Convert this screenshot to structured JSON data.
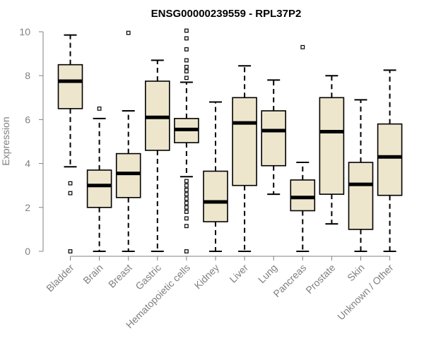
{
  "chart_data": {
    "type": "boxplot",
    "title": "ENSG00000239559 - RPL37P2",
    "xlabel": "",
    "ylabel": "Expression",
    "ylim": [
      0,
      10
    ],
    "yticks": [
      0,
      2,
      4,
      6,
      8,
      10
    ],
    "grid": false,
    "colors": {
      "box_fill": "#ede6cc",
      "box_stroke": "#000000",
      "axis": "#808080"
    },
    "categories": [
      "Bladder",
      "Brain",
      "Breast",
      "Gastric",
      "Hematopoietic cells",
      "Kidney",
      "Liver",
      "Lung",
      "Pancreas",
      "Prostate",
      "Skin",
      "Unknown / Other"
    ],
    "boxes": [
      {
        "category": "Bladder",
        "whisker_low": 3.85,
        "q1": 6.5,
        "median": 7.75,
        "q3": 8.5,
        "whisker_high": 9.85,
        "outliers": [
          0,
          2.65,
          3.1
        ]
      },
      {
        "category": "Brain",
        "whisker_low": 0,
        "q1": 2.0,
        "median": 3.0,
        "q3": 3.7,
        "whisker_high": 6.05,
        "outliers": [
          6.5
        ]
      },
      {
        "category": "Breast",
        "whisker_low": 0,
        "q1": 2.45,
        "median": 3.55,
        "q3": 4.45,
        "whisker_high": 6.4,
        "outliers": [
          9.95
        ]
      },
      {
        "category": "Gastric",
        "whisker_low": 0,
        "q1": 4.6,
        "median": 6.1,
        "q3": 7.75,
        "whisker_high": 8.7,
        "outliers": []
      },
      {
        "category": "Hematopoietic cells",
        "whisker_low": 3.4,
        "q1": 4.95,
        "median": 5.55,
        "q3": 6.05,
        "whisker_high": 7.7,
        "outliers": [
          0,
          1.15,
          1.5,
          1.8,
          2.0,
          2.2,
          2.4,
          2.6,
          2.8,
          3.0,
          3.2,
          7.9,
          8.2,
          8.4,
          8.7,
          9.2,
          9.7,
          10.05
        ]
      },
      {
        "category": "Kidney",
        "whisker_low": 0,
        "q1": 1.35,
        "median": 2.25,
        "q3": 3.65,
        "whisker_high": 6.8,
        "outliers": []
      },
      {
        "category": "Liver",
        "whisker_low": 0,
        "q1": 3.0,
        "median": 5.85,
        "q3": 7.0,
        "whisker_high": 8.45,
        "outliers": []
      },
      {
        "category": "Lung",
        "whisker_low": 2.6,
        "q1": 3.9,
        "median": 5.5,
        "q3": 6.4,
        "whisker_high": 7.8,
        "outliers": []
      },
      {
        "category": "Pancreas",
        "whisker_low": 0,
        "q1": 1.85,
        "median": 2.45,
        "q3": 3.25,
        "whisker_high": 4.05,
        "outliers": [
          9.3
        ]
      },
      {
        "category": "Prostate",
        "whisker_low": 1.25,
        "q1": 2.6,
        "median": 5.45,
        "q3": 7.0,
        "whisker_high": 8.0,
        "outliers": []
      },
      {
        "category": "Skin",
        "whisker_low": 0,
        "q1": 1.0,
        "median": 3.05,
        "q3": 4.05,
        "whisker_high": 6.9,
        "outliers": []
      },
      {
        "category": "Unknown / Other",
        "whisker_low": 0,
        "q1": 2.55,
        "median": 4.3,
        "q3": 5.8,
        "whisker_high": 8.25,
        "outliers": []
      }
    ]
  }
}
